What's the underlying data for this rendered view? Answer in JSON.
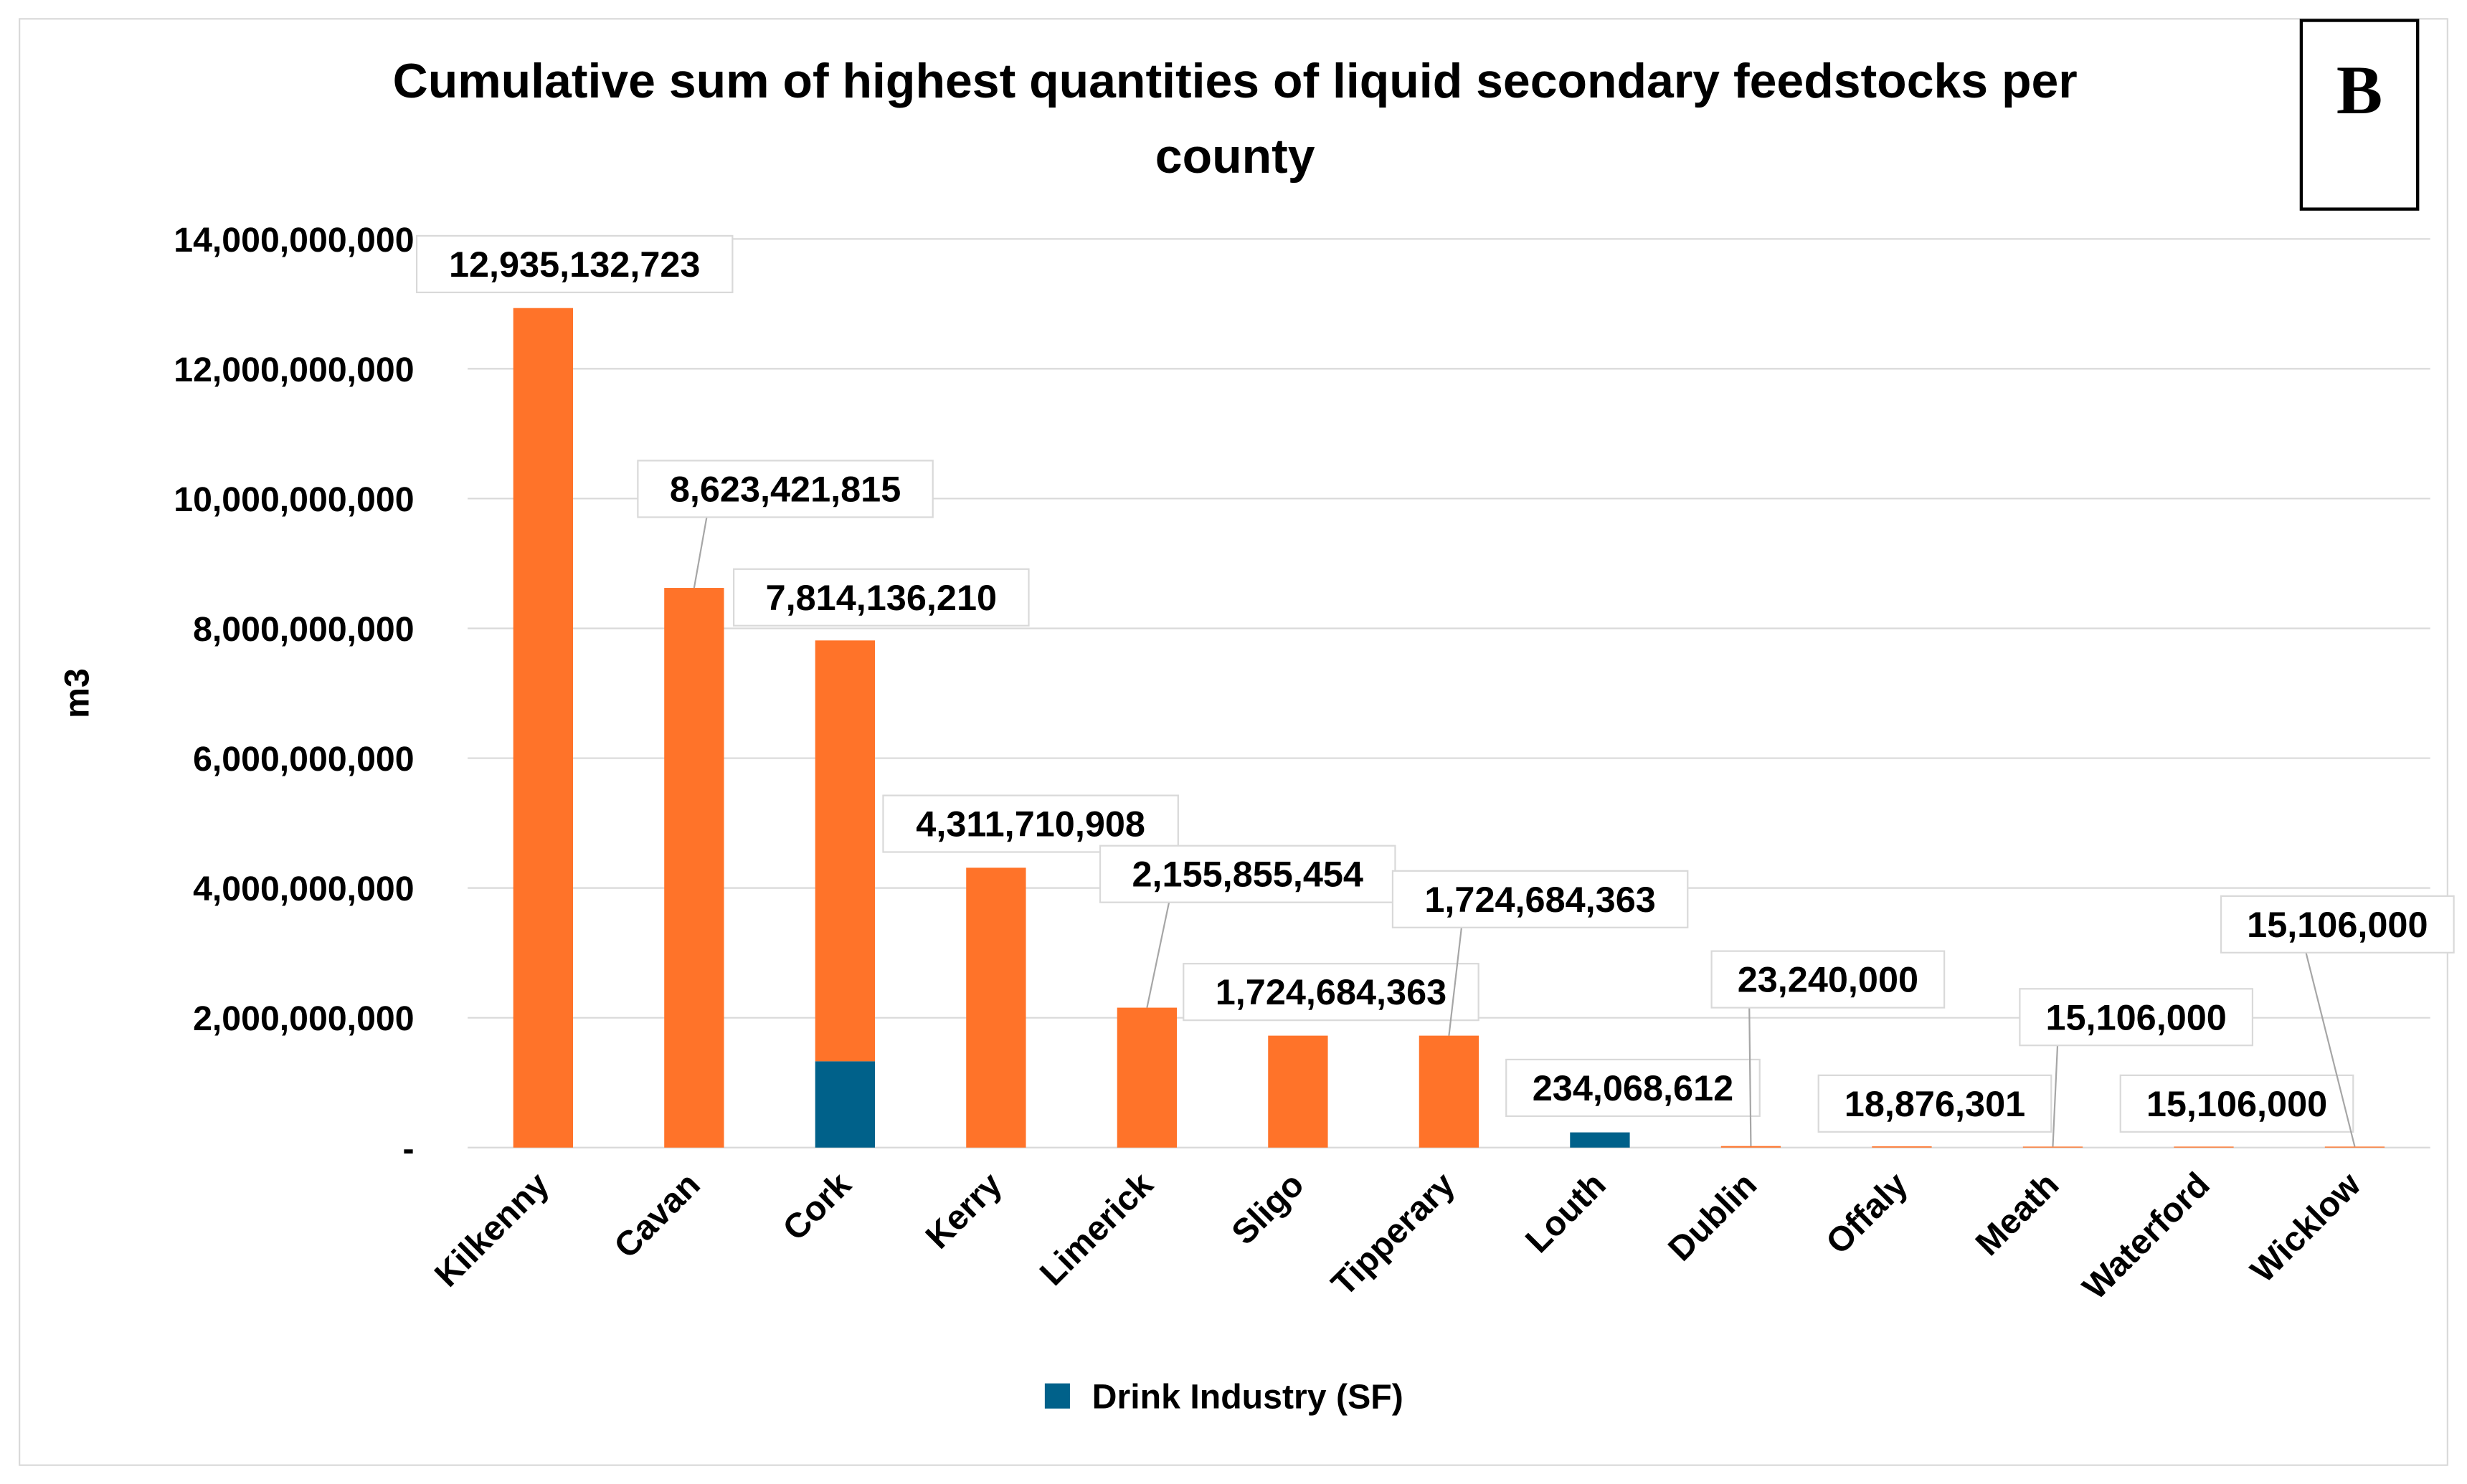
{
  "panel_letter": "B",
  "chart_data": {
    "type": "bar",
    "stacked": true,
    "title": "Cumulative sum of highest quantities of liquid secondary feedstocks per county",
    "title_lines": [
      "Cumulative sum of highest quantities of liquid secondary feedstocks per",
      "county"
    ],
    "xlabel": "",
    "ylabel": "m3",
    "ylim": [
      0,
      14000000000
    ],
    "yticks": [
      0,
      2000000000,
      4000000000,
      6000000000,
      8000000000,
      10000000000,
      12000000000,
      14000000000
    ],
    "ytick_labels": [
      "-",
      "2,000,000,000",
      "4,000,000,000",
      "6,000,000,000",
      "8,000,000,000",
      "10,000,000,000",
      "12,000,000,000",
      "14,000,000,000"
    ],
    "grid": true,
    "legend_position": "bottom",
    "categories": [
      "Kilkenny",
      "Cavan",
      "Cork",
      "Kerry",
      "Limerick",
      "Sligo",
      "Tipperary",
      "Louth",
      "Dublin",
      "Offaly",
      "Meath",
      "Waterford",
      "Wicklow"
    ],
    "series": [
      {
        "name": "Drink Industry (SF)",
        "color": "#00618A",
        "in_legend": true,
        "values": [
          0,
          0,
          1330000000,
          0,
          0,
          0,
          0,
          234068612,
          0,
          0,
          0,
          0,
          0
        ]
      },
      {
        "name": "",
        "color": "#FF7329",
        "in_legend": false,
        "values": [
          12935132723,
          8623421815,
          6484136210,
          4311710908,
          2155855454,
          1724684363,
          1724684363,
          0,
          23240000,
          18876301,
          15106000,
          15106000,
          15106000
        ]
      }
    ],
    "totals": [
      12935132723,
      8623421815,
      7814136210,
      4311710908,
      2155855454,
      1724684363,
      1724684363,
      234068612,
      23240000,
      18876301,
      15106000,
      15106000,
      15106000
    ],
    "data_labels": [
      "12,935,132,723",
      "8,623,421,815",
      "7,814,136,210",
      "4,311,710,908",
      "2,155,855,454",
      "1,724,684,363",
      "1,724,684,363",
      "234,068,612",
      "23,240,000",
      "18,876,301",
      "15,106,000",
      "15,106,000",
      "15,106,000"
    ]
  }
}
